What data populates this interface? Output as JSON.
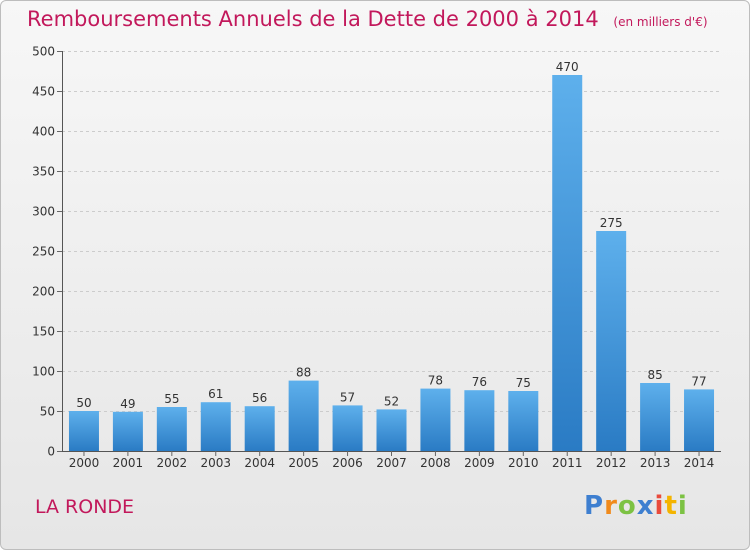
{
  "header": {
    "title": "Remboursements Annuels de la Dette de 2000 à 2014",
    "unit": "(en milliers d'€)"
  },
  "footer": {
    "town": "LA RONDE",
    "brand": [
      "P",
      "r",
      "o",
      "x",
      "i",
      "t",
      "i"
    ]
  },
  "colors": {
    "bar_top": "#5eb0ec",
    "bar_bottom": "#2a7bc4",
    "title": "#c2185b",
    "grid": "#cccccc"
  },
  "chart_data": {
    "type": "bar",
    "title": "Remboursements Annuels de la Dette de 2000 à 2014",
    "xlabel": "",
    "ylabel": "",
    "ylim": [
      0,
      500
    ],
    "yticks": [
      0,
      50,
      100,
      150,
      200,
      250,
      300,
      350,
      400,
      450,
      500
    ],
    "grid": true,
    "categories": [
      "2000",
      "2001",
      "2002",
      "2003",
      "2004",
      "2005",
      "2006",
      "2007",
      "2008",
      "2009",
      "2010",
      "2011",
      "2012",
      "2013",
      "2014"
    ],
    "values": [
      50,
      49,
      55,
      61,
      56,
      88,
      57,
      52,
      78,
      76,
      75,
      470,
      275,
      85,
      77
    ]
  }
}
